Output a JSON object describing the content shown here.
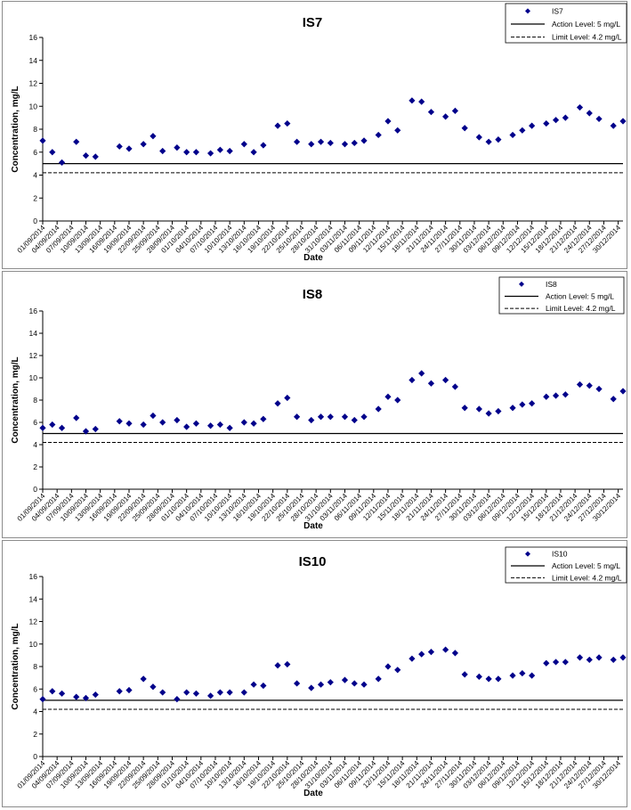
{
  "chart_data": [
    {
      "type": "scatter",
      "title": "IS7",
      "xlabel": "Date",
      "ylabel": "Concentration, mg/L",
      "ylim": [
        0,
        16
      ],
      "yticks": [
        "0",
        "2",
        "4",
        "6",
        "8",
        "10",
        "12",
        "14",
        "16"
      ],
      "xlim": [
        "01/09/2014",
        "31/12/2014"
      ],
      "xticks": [
        "01/09/2014",
        "04/09/2014",
        "07/09/2014",
        "10/09/2014",
        "13/09/2014",
        "16/09/2014",
        "19/09/2014",
        "22/09/2014",
        "25/09/2014",
        "28/09/2014",
        "01/10/2014",
        "04/10/2014",
        "07/10/2014",
        "10/10/2014",
        "13/10/2014",
        "16/10/2014",
        "19/10/2014",
        "22/10/2014",
        "25/10/2014",
        "28/10/2014",
        "31/10/2014",
        "03/11/2014",
        "06/11/2014",
        "09/11/2014",
        "12/11/2014",
        "15/11/2014",
        "18/11/2014",
        "21/11/2014",
        "24/11/2014",
        "27/11/2014",
        "30/11/2014",
        "03/12/2014",
        "06/12/2014",
        "09/12/2014",
        "12/12/2014",
        "15/12/2014",
        "18/12/2014",
        "21/12/2014",
        "24/12/2014",
        "27/12/2014",
        "30/12/2014"
      ],
      "legend_position": "top-right",
      "series": [
        {
          "name": "IS7",
          "marker": "diamond",
          "color": "#00008B",
          "x": [
            "01/09/2014",
            "03/09/2014",
            "05/09/2014",
            "08/09/2014",
            "10/09/2014",
            "12/09/2014",
            "17/09/2014",
            "19/09/2014",
            "22/09/2014",
            "24/09/2014",
            "26/09/2014",
            "29/09/2014",
            "01/10/2014",
            "03/10/2014",
            "06/10/2014",
            "08/10/2014",
            "10/10/2014",
            "13/10/2014",
            "15/10/2014",
            "17/10/2014",
            "20/10/2014",
            "22/10/2014",
            "24/10/2014",
            "27/10/2014",
            "29/10/2014",
            "31/10/2014",
            "03/11/2014",
            "05/11/2014",
            "07/11/2014",
            "10/11/2014",
            "12/11/2014",
            "14/11/2014",
            "17/11/2014",
            "19/11/2014",
            "21/11/2014",
            "24/11/2014",
            "26/11/2014",
            "28/11/2014",
            "01/12/2014",
            "03/12/2014",
            "05/12/2014",
            "08/12/2014",
            "10/12/2014",
            "12/12/2014",
            "15/12/2014",
            "17/12/2014",
            "19/12/2014",
            "22/12/2014",
            "24/12/2014",
            "26/12/2014",
            "29/12/2014",
            "31/12/2014"
          ],
          "y": [
            7.0,
            6.0,
            5.1,
            6.9,
            5.7,
            5.6,
            6.5,
            6.3,
            6.7,
            7.4,
            6.1,
            6.4,
            6.0,
            6.0,
            5.9,
            6.2,
            6.1,
            6.7,
            6.0,
            6.6,
            8.3,
            8.5,
            6.9,
            6.7,
            6.9,
            6.8,
            6.7,
            6.8,
            7.0,
            7.5,
            8.7,
            7.9,
            10.5,
            10.4,
            9.5,
            9.1,
            9.6,
            8.1,
            7.3,
            6.9,
            7.1,
            7.5,
            7.9,
            8.3,
            8.5,
            8.8,
            9.0,
            9.9,
            9.4,
            8.9,
            8.3,
            8.7
          ]
        },
        {
          "name": "Action Level: 5 mg/L",
          "style": "solid",
          "y_constant": 5
        },
        {
          "name": "Limit Level: 4.2 mg/L",
          "style": "dashed",
          "y_constant": 4.2
        }
      ]
    },
    {
      "type": "scatter",
      "title": "IS8",
      "xlabel": "Date",
      "ylabel": "Concentration, mg/L",
      "ylim": [
        0,
        16
      ],
      "yticks": [
        "0",
        "2",
        "4",
        "6",
        "8",
        "10",
        "12",
        "14",
        "16"
      ],
      "xlim": [
        "01/09/2014",
        "31/12/2014"
      ],
      "xticks": [
        "01/09/2014",
        "04/09/2014",
        "07/09/2014",
        "10/09/2014",
        "13/09/2014",
        "16/09/2014",
        "19/09/2014",
        "22/09/2014",
        "25/09/2014",
        "28/09/2014",
        "01/10/2014",
        "04/10/2014",
        "07/10/2014",
        "10/10/2014",
        "13/10/2014",
        "16/10/2014",
        "19/10/2014",
        "22/10/2014",
        "25/10/2014",
        "28/10/2014",
        "31/10/2014",
        "03/11/2014",
        "06/11/2014",
        "09/11/2014",
        "12/11/2014",
        "15/11/2014",
        "18/11/2014",
        "21/11/2014",
        "24/11/2014",
        "27/11/2014",
        "30/11/2014",
        "03/12/2014",
        "06/12/2014",
        "09/12/2014",
        "12/12/2014",
        "15/12/2014",
        "18/12/2014",
        "21/12/2014",
        "24/12/2014",
        "27/12/2014",
        "30/12/2014"
      ],
      "legend_position": "top-right",
      "series": [
        {
          "name": "IS8",
          "marker": "diamond",
          "color": "#00008B",
          "x": [
            "01/09/2014",
            "03/09/2014",
            "05/09/2014",
            "08/09/2014",
            "10/09/2014",
            "12/09/2014",
            "17/09/2014",
            "19/09/2014",
            "22/09/2014",
            "24/09/2014",
            "26/09/2014",
            "29/09/2014",
            "01/10/2014",
            "03/10/2014",
            "06/10/2014",
            "08/10/2014",
            "10/10/2014",
            "13/10/2014",
            "15/10/2014",
            "17/10/2014",
            "20/10/2014",
            "22/10/2014",
            "24/10/2014",
            "27/10/2014",
            "29/10/2014",
            "31/10/2014",
            "03/11/2014",
            "05/11/2014",
            "07/11/2014",
            "10/11/2014",
            "12/11/2014",
            "14/11/2014",
            "17/11/2014",
            "19/11/2014",
            "21/11/2014",
            "24/11/2014",
            "26/11/2014",
            "28/11/2014",
            "01/12/2014",
            "03/12/2014",
            "05/12/2014",
            "08/12/2014",
            "10/12/2014",
            "12/12/2014",
            "15/12/2014",
            "17/12/2014",
            "19/12/2014",
            "22/12/2014",
            "24/12/2014",
            "26/12/2014",
            "29/12/2014",
            "31/12/2014"
          ],
          "y": [
            5.5,
            5.8,
            5.5,
            6.4,
            5.2,
            5.4,
            6.1,
            5.9,
            5.8,
            6.6,
            6.0,
            6.2,
            5.6,
            5.9,
            5.7,
            5.8,
            5.5,
            6.0,
            5.9,
            6.3,
            7.7,
            8.2,
            6.5,
            6.2,
            6.5,
            6.5,
            6.5,
            6.2,
            6.5,
            7.2,
            8.3,
            8.0,
            9.8,
            10.4,
            9.5,
            9.8,
            9.2,
            7.3,
            7.2,
            6.8,
            7.0,
            7.3,
            7.6,
            7.7,
            8.3,
            8.4,
            8.5,
            9.4,
            9.3,
            9.0,
            8.1,
            8.8
          ]
        },
        {
          "name": "Action Level: 5 mg/L",
          "style": "solid",
          "y_constant": 5
        },
        {
          "name": "Limit Level: 4.2 mg/L",
          "style": "dashed",
          "y_constant": 4.2
        }
      ]
    },
    {
      "type": "scatter",
      "title": "IS10",
      "xlabel": "Date",
      "ylabel": "Concentration, mg/L",
      "ylim": [
        0,
        16
      ],
      "yticks": [
        "0",
        "2",
        "4",
        "6",
        "8",
        "10",
        "12",
        "14",
        "16"
      ],
      "xlim": [
        "01/09/2014",
        "31/12/2014"
      ],
      "xticks": [
        "01/09/2014",
        "04/09/2014",
        "07/09/2014",
        "10/09/2014",
        "13/09/2014",
        "16/09/2014",
        "19/09/2014",
        "22/09/2014",
        "25/09/2014",
        "28/09/2014",
        "01/10/2014",
        "04/10/2014",
        "07/10/2014",
        "10/10/2014",
        "13/10/2014",
        "16/10/2014",
        "19/10/2014",
        "22/10/2014",
        "25/10/2014",
        "28/10/2014",
        "31/10/2014",
        "03/11/2014",
        "06/11/2014",
        "09/11/2014",
        "12/11/2014",
        "15/11/2014",
        "18/11/2014",
        "21/11/2014",
        "24/11/2014",
        "27/11/2014",
        "30/11/2014",
        "03/12/2014",
        "06/12/2014",
        "09/12/2014",
        "12/12/2014",
        "15/12/2014",
        "18/12/2014",
        "21/12/2014",
        "24/12/2014",
        "27/12/2014",
        "30/12/2014"
      ],
      "legend_position": "top-right",
      "series": [
        {
          "name": "IS10",
          "marker": "diamond",
          "color": "#00008B",
          "x": [
            "01/09/2014",
            "03/09/2014",
            "05/09/2014",
            "08/09/2014",
            "10/09/2014",
            "12/09/2014",
            "17/09/2014",
            "19/09/2014",
            "22/09/2014",
            "24/09/2014",
            "26/09/2014",
            "29/09/2014",
            "01/10/2014",
            "03/10/2014",
            "06/10/2014",
            "08/10/2014",
            "10/10/2014",
            "13/10/2014",
            "15/10/2014",
            "17/10/2014",
            "20/10/2014",
            "22/10/2014",
            "24/10/2014",
            "27/10/2014",
            "29/10/2014",
            "31/10/2014",
            "03/11/2014",
            "05/11/2014",
            "07/11/2014",
            "10/11/2014",
            "12/11/2014",
            "14/11/2014",
            "17/11/2014",
            "19/11/2014",
            "21/11/2014",
            "24/11/2014",
            "26/11/2014",
            "28/11/2014",
            "01/12/2014",
            "03/12/2014",
            "05/12/2014",
            "08/12/2014",
            "10/12/2014",
            "12/12/2014",
            "15/12/2014",
            "17/12/2014",
            "19/12/2014",
            "22/12/2014",
            "24/12/2014",
            "26/12/2014",
            "29/12/2014",
            "31/12/2014"
          ],
          "y": [
            5.1,
            5.8,
            5.6,
            5.3,
            5.2,
            5.5,
            5.8,
            5.9,
            6.9,
            6.2,
            5.7,
            5.1,
            5.7,
            5.6,
            5.4,
            5.7,
            5.7,
            5.7,
            6.4,
            6.3,
            8.1,
            8.2,
            6.5,
            6.1,
            6.4,
            6.6,
            6.8,
            6.5,
            6.4,
            6.9,
            8.0,
            7.7,
            8.7,
            9.1,
            9.3,
            9.5,
            9.2,
            7.3,
            7.1,
            6.9,
            6.9,
            7.2,
            7.4,
            7.2,
            8.3,
            8.4,
            8.4,
            8.8,
            8.6,
            8.8,
            8.6,
            8.8
          ]
        },
        {
          "name": "Action Level: 5 mg/L",
          "style": "solid",
          "y_constant": 5
        },
        {
          "name": "Limit Level: 4.2 mg/L",
          "style": "dashed",
          "y_constant": 4.2
        }
      ]
    }
  ]
}
